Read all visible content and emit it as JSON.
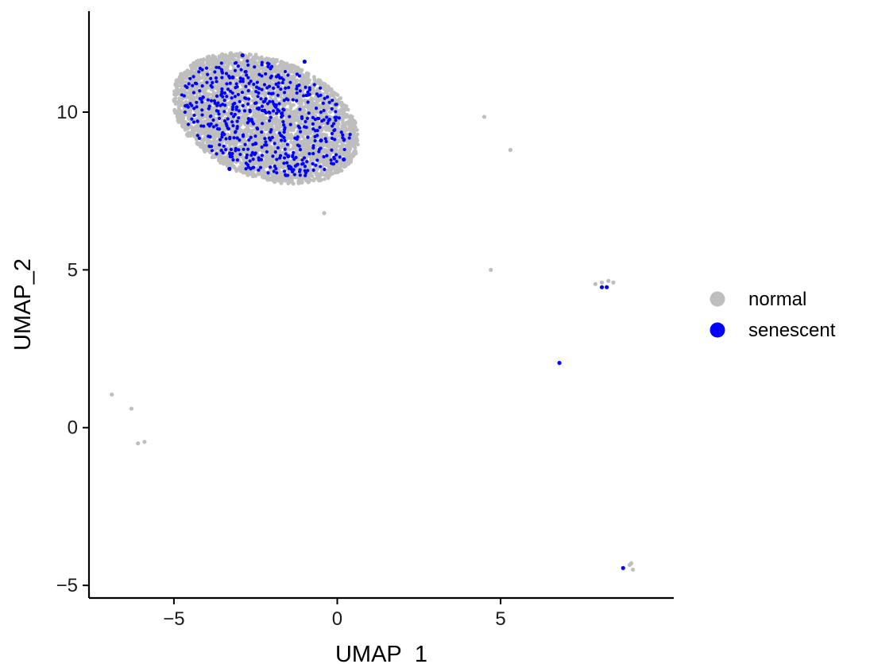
{
  "chart_data": {
    "type": "scatter",
    "title": "",
    "xlabel": "UMAP_1",
    "ylabel": "UMAP_2",
    "xlim": [
      -7.6,
      10.3
    ],
    "ylim": [
      -5.4,
      13.2
    ],
    "x_ticks": [
      -5,
      0,
      5
    ],
    "x_tick_labels": [
      "−5",
      "0",
      "5"
    ],
    "y_ticks": [
      -5,
      0,
      5,
      10
    ],
    "y_tick_labels": [
      "−5",
      "0",
      "5",
      "10"
    ],
    "grid": false,
    "legend": {
      "position": "right",
      "entries": [
        {
          "label": "normal",
          "color": "#bebebe"
        },
        {
          "label": "senescent",
          "color": "#0000ff"
        }
      ]
    },
    "main_cluster": {
      "description_values": "dense region of normal cells with scattered senescent cells",
      "center": [
        -2.2,
        9.8
      ],
      "x_range": [
        -5.0,
        0.9
      ],
      "y_range": [
        6.8,
        12.3
      ]
    },
    "series": [
      {
        "name": "normal",
        "color": "#bebebe",
        "points": [
          [
            4.5,
            9.85
          ],
          [
            5.3,
            8.8
          ],
          [
            4.7,
            5.0
          ],
          [
            7.9,
            4.55
          ],
          [
            8.1,
            4.6
          ],
          [
            8.3,
            4.65
          ],
          [
            8.45,
            4.6
          ],
          [
            -6.9,
            1.05
          ],
          [
            -6.3,
            0.6
          ],
          [
            -6.1,
            -0.5
          ],
          [
            -5.9,
            -0.45
          ],
          [
            9.0,
            -4.3
          ],
          [
            9.05,
            -4.5
          ],
          [
            8.95,
            -4.35
          ],
          [
            -0.4,
            6.8
          ]
        ]
      },
      {
        "name": "senescent",
        "color": "#0000ff",
        "points": [
          [
            6.8,
            2.05
          ],
          [
            8.1,
            4.45
          ],
          [
            8.25,
            4.45
          ],
          [
            8.75,
            -4.45
          ],
          [
            -3.3,
            8.2
          ],
          [
            -1.0,
            11.6
          ],
          [
            -3.2,
            11.1
          ],
          [
            -4.6,
            10.2
          ],
          [
            -2.5,
            9.0
          ],
          [
            -1.5,
            8.6
          ],
          [
            -0.5,
            9.1
          ],
          [
            0.2,
            8.5
          ],
          [
            -2.9,
            11.8
          ],
          [
            -3.9,
            9.6
          ],
          [
            -1.9,
            10.2
          ]
        ]
      }
    ]
  }
}
